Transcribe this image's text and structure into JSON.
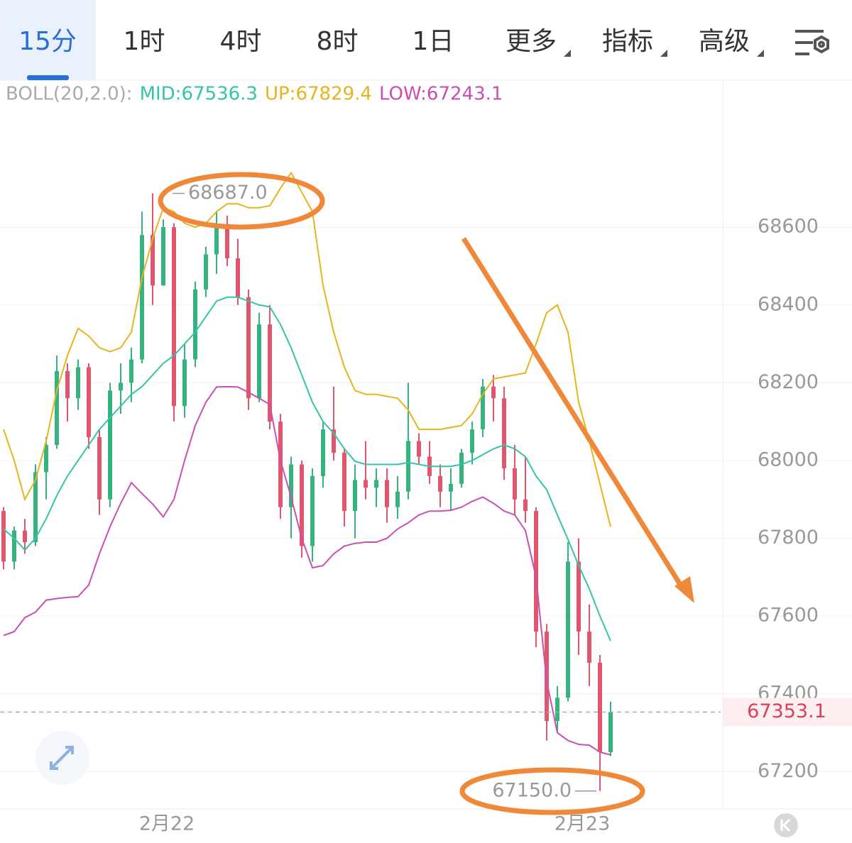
{
  "toolbar": {
    "tabs": [
      "15分",
      "1时",
      "4时",
      "8时",
      "1日",
      "更多",
      "指标",
      "高级"
    ],
    "active": 0
  },
  "chart_data": {
    "type": "candlestick",
    "legend_title": "BOLL(20,2.0):",
    "categories": [
      null,
      null,
      null,
      null,
      null,
      null,
      null,
      null,
      null,
      null,
      null,
      null,
      null,
      null,
      null,
      "2月22",
      null,
      null,
      null,
      null,
      null,
      null,
      null,
      null,
      null,
      null,
      null,
      null,
      null,
      null,
      null,
      null,
      null,
      null,
      null,
      null,
      null,
      null,
      null,
      null,
      null,
      null,
      null,
      null,
      null,
      null,
      null,
      null,
      null,
      null,
      null,
      null,
      null,
      null,
      "2月23",
      null,
      null,
      null
    ],
    "open": [
      67870,
      67740,
      67820,
      67790,
      67970,
      68040,
      68230,
      68160,
      68240,
      68060,
      67900,
      68180,
      68200,
      68260,
      68580,
      68450,
      68600,
      68140,
      68260,
      68440,
      68530,
      68600,
      68520,
      68420,
      68160,
      68350,
      68100,
      67880,
      67990,
      67780,
      67960,
      68080,
      68020,
      67870,
      67950,
      67930,
      67950,
      67880,
      67920,
      68050,
      68010,
      67960,
      67920,
      67940,
      68020,
      68080,
      68190,
      68160,
      67980,
      67900,
      67870,
      67560,
      67330,
      67390,
      67740,
      67560,
      67480,
      67250
    ],
    "high": [
      67880,
      67830,
      67850,
      67990,
      68060,
      68270,
      68250,
      68260,
      68250,
      68080,
      68200,
      68250,
      68290,
      68640,
      68687,
      68620,
      68610,
      68300,
      68460,
      68550,
      68640,
      68630,
      68570,
      68440,
      68380,
      68400,
      68120,
      68010,
      68000,
      67980,
      68100,
      68190,
      68030,
      67990,
      68050,
      67980,
      67980,
      67960,
      68200,
      68070,
      68050,
      67990,
      67980,
      68030,
      68100,
      68210,
      68220,
      68190,
      68040,
      68010,
      67880,
      67580,
      67420,
      67790,
      67800,
      67630,
      67500,
      67380
    ],
    "low": [
      67720,
      67720,
      67760,
      67780,
      67900,
      68030,
      68100,
      68130,
      68030,
      67860,
      67880,
      68120,
      68150,
      68250,
      68400,
      68450,
      68100,
      68110,
      68240,
      68420,
      68480,
      68500,
      68400,
      68130,
      68150,
      68080,
      67850,
      67800,
      67750,
      67740,
      67930,
      68000,
      67830,
      67800,
      67900,
      67880,
      67840,
      67850,
      67900,
      67990,
      67940,
      67880,
      67870,
      67930,
      67990,
      68060,
      68100,
      67950,
      67860,
      67840,
      67520,
      67280,
      67300,
      67380,
      67500,
      67420,
      67150,
      67240
    ],
    "close": [
      67740,
      67820,
      67790,
      67970,
      68040,
      68230,
      68160,
      68240,
      68060,
      67900,
      68180,
      68200,
      68260,
      68580,
      68450,
      68600,
      68140,
      68260,
      68440,
      68530,
      68600,
      68520,
      68420,
      68160,
      68350,
      68100,
      67880,
      67990,
      67780,
      67960,
      68080,
      68020,
      67870,
      67950,
      67930,
      67950,
      67880,
      67920,
      68050,
      68010,
      67960,
      67920,
      67940,
      68020,
      68080,
      68190,
      68160,
      67980,
      67900,
      67870,
      67560,
      67330,
      67390,
      67740,
      67560,
      67480,
      67250,
      67353.1
    ],
    "up_color": "#35b37e",
    "down_color": "#e0566f",
    "series": [
      {
        "name": "MID:67536.3",
        "color": "#36c4a8",
        "values": [
          67824,
          67800,
          67770,
          67800,
          67850,
          67910,
          67960,
          68000,
          68040,
          68080,
          68110,
          68140,
          68170,
          68190,
          68220,
          68250,
          68270,
          68300,
          68330,
          68370,
          68410,
          68420,
          68420,
          68410,
          68400,
          68395,
          68350,
          68290,
          68220,
          68150,
          68100,
          68070,
          68030,
          67998,
          67990,
          67990,
          67990,
          67990,
          67995,
          67990,
          67985,
          67985,
          67985,
          67990,
          68000,
          68015,
          68030,
          68040,
          68030,
          68010,
          67960,
          67925,
          67860,
          67797,
          67730,
          67670,
          67600,
          67536.3
        ]
      },
      {
        "name": "UP:67829.4",
        "color": "#e6b422",
        "values": [
          68080,
          68000,
          67900,
          67950,
          68050,
          68180,
          68270,
          68340,
          68320,
          68290,
          68280,
          68290,
          68330,
          68470,
          68570,
          68650,
          68640,
          68610,
          68600,
          68610,
          68640,
          68660,
          68660,
          68650,
          68650,
          68655,
          68700,
          68740,
          68690,
          68640,
          68450,
          68330,
          68240,
          68180,
          68170,
          68170,
          68165,
          68160,
          68130,
          68080,
          68080,
          68080,
          68085,
          68090,
          68120,
          68170,
          68210,
          68215,
          68220,
          68225,
          68300,
          68380,
          68400,
          68330,
          68150,
          68050,
          67940,
          67829.4
        ]
      },
      {
        "name": "LOW:67243.1",
        "color": "#cc4fb0",
        "values": [
          67550,
          67560,
          67596,
          67610,
          67641,
          67645,
          67648,
          67650,
          67680,
          67760,
          67830,
          67890,
          67943,
          67915,
          67888,
          67855,
          67900,
          68000,
          68090,
          68150,
          68189,
          68190,
          68189,
          68175,
          68160,
          68144,
          68000,
          67906,
          67800,
          67724,
          67730,
          67760,
          67780,
          67787,
          67790,
          67790,
          67800,
          67824,
          67840,
          67860,
          67870,
          67870,
          67872,
          67880,
          67895,
          67906,
          67890,
          67870,
          67860,
          67820,
          67700,
          67432,
          67300,
          67280,
          67270,
          67268,
          67250,
          67243.1
        ]
      }
    ],
    "ylim": [
      67104,
      68978
    ],
    "yticks": [
      67200,
      67400,
      67600,
      67800,
      68000,
      68200,
      68400,
      68600
    ],
    "grid": true,
    "high_label": {
      "value": 68687,
      "label": "68687.0"
    },
    "low_label": {
      "value": 67150,
      "label": "67150.0"
    },
    "last_price": {
      "value": 67353.1,
      "label": "67353.1"
    }
  }
}
